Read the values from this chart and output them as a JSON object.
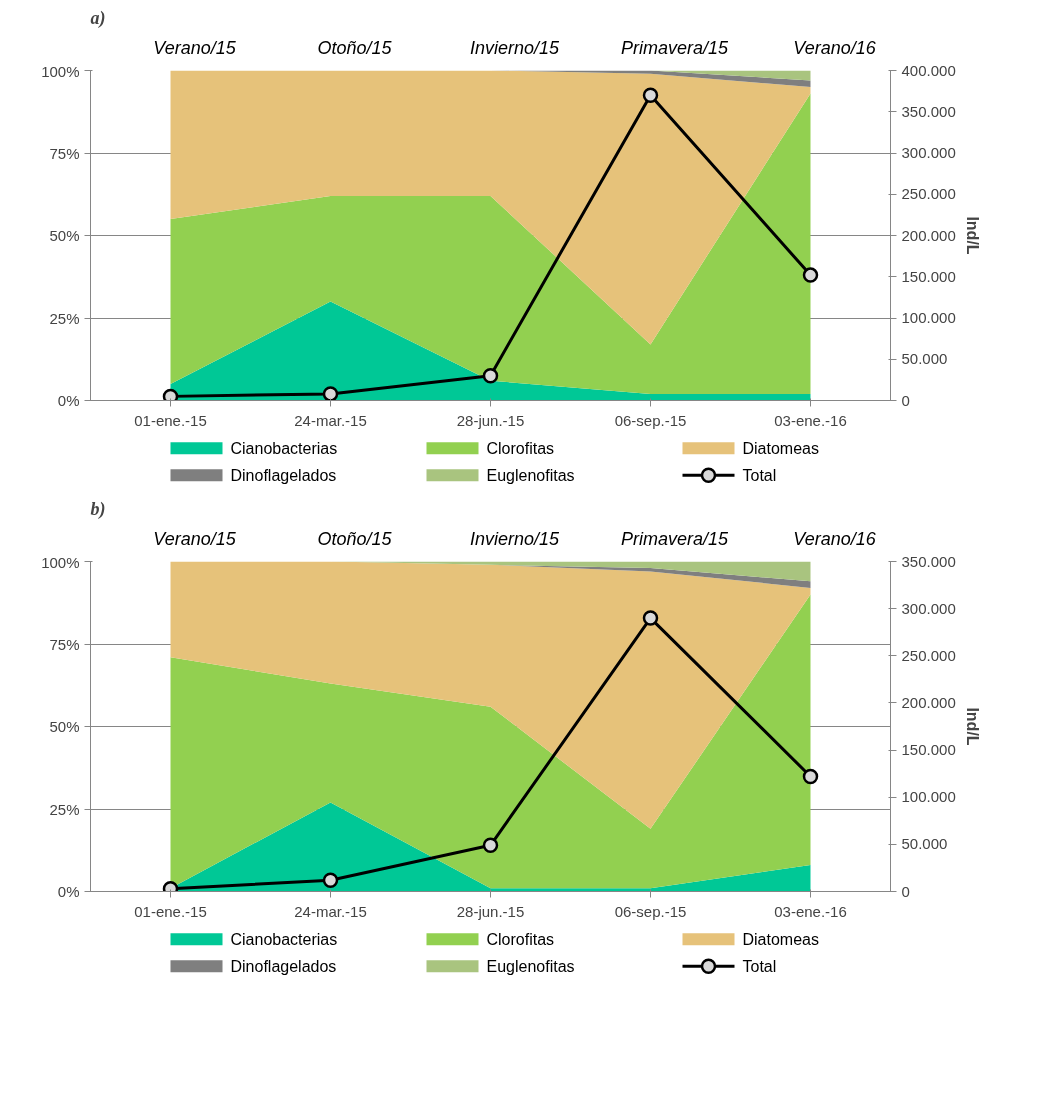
{
  "chart_data": [
    {
      "type": "area",
      "stacked": true,
      "title": "a)",
      "annotations": [
        "Verano/15",
        "Otoño/15",
        "Invierno/15",
        "Primavera/15",
        "Verano/16"
      ],
      "categories": [
        "01-ene.-15",
        "24-mar.-15",
        "28-jun.-15",
        "06-sep.-15",
        "03-ene.-16"
      ],
      "ylim": [
        0,
        100
      ],
      "yticks": [
        {
          "value": 0,
          "label": "0%"
        },
        {
          "value": 25,
          "label": "25%"
        },
        {
          "value": 50,
          "label": "50%"
        },
        {
          "value": 75,
          "label": "75%"
        },
        {
          "value": 100,
          "label": "100%"
        }
      ],
      "y2label": "Ind/L",
      "y2lim": [
        0,
        400000
      ],
      "y2ticks": [
        {
          "value": 0,
          "label": "0"
        },
        {
          "value": 50000,
          "label": "50.000"
        },
        {
          "value": 100000,
          "label": "100.000"
        },
        {
          "value": 150000,
          "label": "150.000"
        },
        {
          "value": 200000,
          "label": "200.000"
        },
        {
          "value": 250000,
          "label": "250.000"
        },
        {
          "value": 300000,
          "label": "300.000"
        },
        {
          "value": 350000,
          "label": "350.000"
        },
        {
          "value": 400000,
          "label": "400.000"
        }
      ],
      "grid": "y",
      "legend": "bottom",
      "series": [
        {
          "name": "Cianobacterias",
          "color": "#00c896",
          "values": [
            5,
            30,
            6,
            2,
            2
          ]
        },
        {
          "name": "Clorofitas",
          "color": "#92d050",
          "values": [
            50,
            32,
            56,
            15,
            91
          ]
        },
        {
          "name": "Diatomeas",
          "color": "#e6c27a",
          "values": [
            45,
            38,
            38,
            82,
            2
          ]
        },
        {
          "name": "Dinoflagelados",
          "color": "#7f7f7f",
          "values": [
            0,
            0,
            0,
            1,
            2
          ]
        },
        {
          "name": "Euglenofitas",
          "color": "#a9c47f",
          "values": [
            0,
            0,
            0,
            0,
            3
          ]
        },
        {
          "name": "Total",
          "type": "line",
          "axis": "y2",
          "color": "#000000",
          "marker": "circle",
          "values": [
            5000,
            8000,
            30000,
            370000,
            152000
          ]
        }
      ]
    },
    {
      "type": "area",
      "stacked": true,
      "title": "b)",
      "annotations": [
        "Verano/15",
        "Otoño/15",
        "Invierno/15",
        "Primavera/15",
        "Verano/16"
      ],
      "categories": [
        "01-ene.-15",
        "24-mar.-15",
        "28-jun.-15",
        "06-sep.-15",
        "03-ene.-16"
      ],
      "ylim": [
        0,
        100
      ],
      "yticks": [
        {
          "value": 0,
          "label": "0%"
        },
        {
          "value": 25,
          "label": "25%"
        },
        {
          "value": 50,
          "label": "50%"
        },
        {
          "value": 75,
          "label": "75%"
        },
        {
          "value": 100,
          "label": "100%"
        }
      ],
      "y2label": "Ind/L",
      "y2lim": [
        0,
        350000
      ],
      "y2ticks": [
        {
          "value": 0,
          "label": "0"
        },
        {
          "value": 50000,
          "label": "50.000"
        },
        {
          "value": 100000,
          "label": "100.000"
        },
        {
          "value": 150000,
          "label": "150.000"
        },
        {
          "value": 200000,
          "label": "200.000"
        },
        {
          "value": 250000,
          "label": "250.000"
        },
        {
          "value": 300000,
          "label": "300.000"
        },
        {
          "value": 350000,
          "label": "350.000"
        }
      ],
      "grid": "y",
      "legend": "bottom",
      "series": [
        {
          "name": "Cianobacterias",
          "color": "#00c896",
          "values": [
            1,
            27,
            1,
            1,
            8
          ]
        },
        {
          "name": "Clorofitas",
          "color": "#92d050",
          "values": [
            70,
            36,
            55,
            18,
            82
          ]
        },
        {
          "name": "Diatomeas",
          "color": "#e6c27a",
          "values": [
            29,
            37,
            43,
            78,
            2
          ]
        },
        {
          "name": "Dinoflagelados",
          "color": "#7f7f7f",
          "values": [
            0,
            0,
            0,
            1,
            2
          ]
        },
        {
          "name": "Euglenofitas",
          "color": "#a9c47f",
          "values": [
            0,
            0,
            1,
            2,
            6
          ]
        },
        {
          "name": "Total",
          "type": "line",
          "axis": "y2",
          "color": "#000000",
          "marker": "circle",
          "values": [
            3000,
            12000,
            49000,
            290000,
            122000
          ]
        }
      ]
    }
  ]
}
